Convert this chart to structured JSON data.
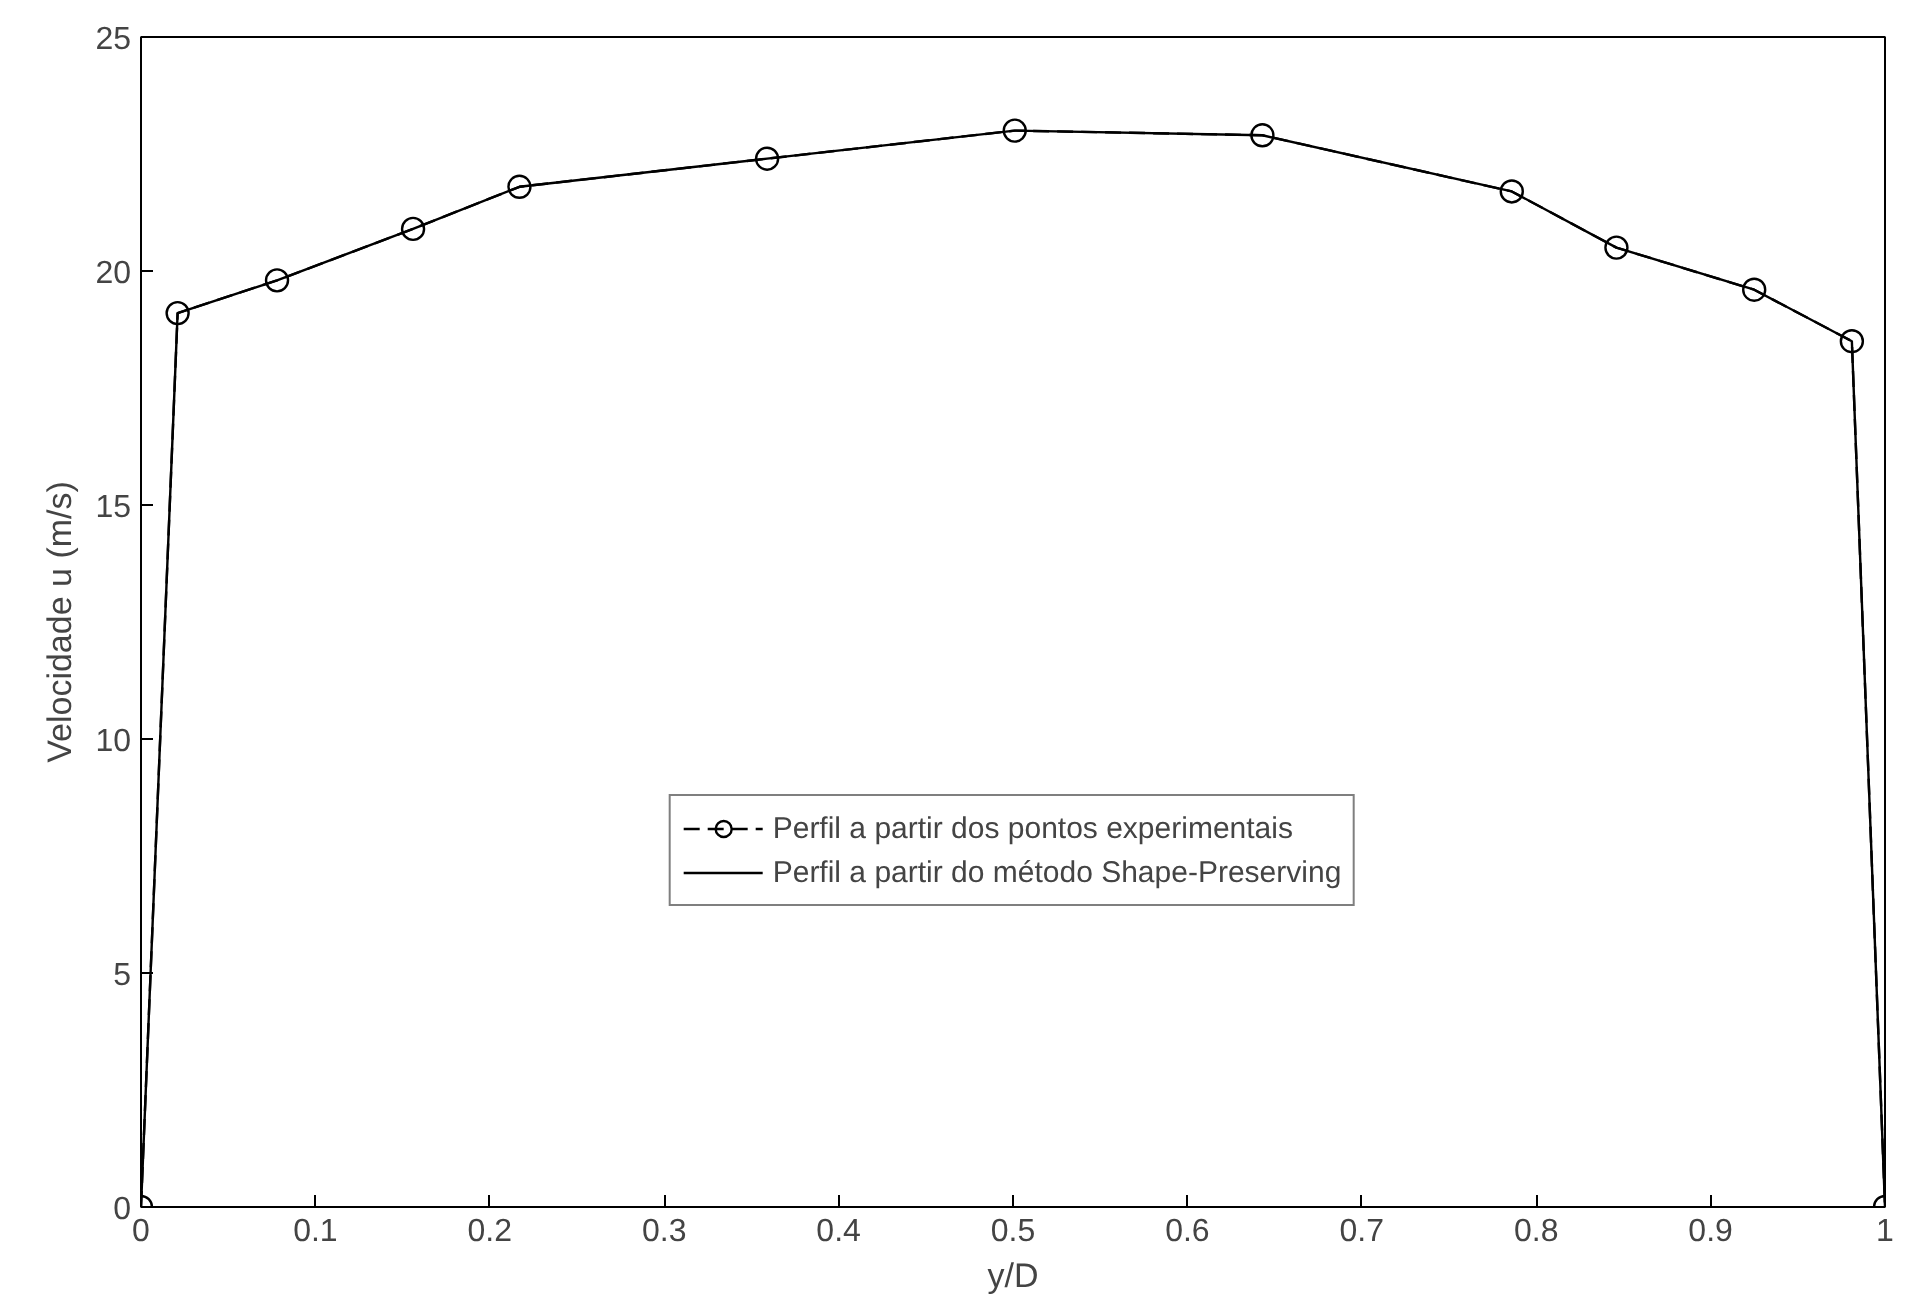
{
  "chart_data": {
    "type": "line",
    "xlabel": "y/D",
    "ylabel": "Velocidade u (m/s)",
    "x": [
      0,
      0.021,
      0.078,
      0.156,
      0.217,
      0.359,
      0.501,
      0.643,
      0.786,
      0.846,
      0.925,
      0.981,
      1
    ],
    "series": [
      {
        "name": "Perfil a partir dos pontos experimentais",
        "color": "#000000",
        "marker": "circle",
        "line_style": "dashed",
        "values": [
          0,
          19.1,
          19.8,
          20.9,
          21.8,
          22.4,
          23.0,
          22.9,
          21.7,
          20.5,
          19.6,
          18.5,
          0
        ]
      },
      {
        "name": "Perfil a partir do método Shape-Preserving",
        "color": "#000000",
        "marker": "none",
        "line_style": "solid",
        "values": [
          0,
          19.1,
          19.8,
          20.9,
          21.8,
          22.4,
          23.0,
          22.9,
          21.7,
          20.5,
          19.6,
          18.5,
          0
        ]
      }
    ],
    "xlim": [
      0,
      1
    ],
    "ylim": [
      0,
      25
    ],
    "xticks": [
      0,
      0.1,
      0.2,
      0.3,
      0.4,
      0.5,
      0.6,
      0.7,
      0.8,
      0.9,
      1
    ],
    "yticks": [
      0,
      5,
      10,
      15,
      20,
      25
    ],
    "grid": false,
    "legend": "bottom"
  }
}
